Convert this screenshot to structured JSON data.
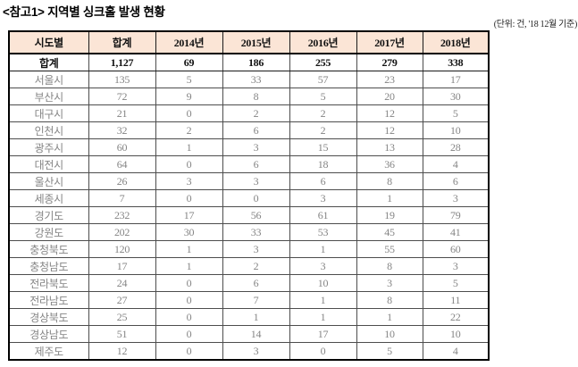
{
  "title": "<참고1> 지역별 싱크홀 발생 현황",
  "unit_note": "(단위: 건, '18 12월 기준)",
  "colors": {
    "header_bg": "#FBE5D6",
    "body_text": "#858585",
    "emphasis_text": "#111111",
    "border": "#4d4d4d"
  },
  "table": {
    "columns": [
      "시도별",
      "합계",
      "2014년",
      "2015년",
      "2016년",
      "2017년",
      "2018년"
    ],
    "total_row": {
      "label": "합계",
      "values": [
        "1,127",
        "69",
        "186",
        "255",
        "279",
        "338"
      ]
    },
    "rows": [
      {
        "label": "서울시",
        "values": [
          "135",
          "5",
          "33",
          "57",
          "23",
          "17"
        ]
      },
      {
        "label": "부산시",
        "values": [
          "72",
          "9",
          "8",
          "5",
          "20",
          "30"
        ]
      },
      {
        "label": "대구시",
        "values": [
          "21",
          "0",
          "2",
          "2",
          "12",
          "5"
        ]
      },
      {
        "label": "인천시",
        "values": [
          "32",
          "2",
          "6",
          "2",
          "12",
          "10"
        ]
      },
      {
        "label": "광주시",
        "values": [
          "60",
          "1",
          "3",
          "15",
          "13",
          "28"
        ]
      },
      {
        "label": "대전시",
        "values": [
          "64",
          "0",
          "6",
          "18",
          "36",
          "4"
        ]
      },
      {
        "label": "울산시",
        "values": [
          "26",
          "3",
          "3",
          "6",
          "8",
          "6"
        ]
      },
      {
        "label": "세종시",
        "values": [
          "7",
          "0",
          "0",
          "3",
          "1",
          "3"
        ]
      },
      {
        "label": "경기도",
        "values": [
          "232",
          "17",
          "56",
          "61",
          "19",
          "79"
        ]
      },
      {
        "label": "강원도",
        "values": [
          "202",
          "30",
          "33",
          "53",
          "45",
          "41"
        ]
      },
      {
        "label": "충청북도",
        "values": [
          "120",
          "1",
          "3",
          "1",
          "55",
          "60"
        ]
      },
      {
        "label": "충청남도",
        "values": [
          "17",
          "1",
          "2",
          "3",
          "8",
          "3"
        ]
      },
      {
        "label": "전라북도",
        "values": [
          "24",
          "0",
          "6",
          "10",
          "3",
          "5"
        ]
      },
      {
        "label": "전라남도",
        "values": [
          "27",
          "0",
          "7",
          "1",
          "8",
          "11"
        ]
      },
      {
        "label": "경상북도",
        "values": [
          "25",
          "0",
          "1",
          "1",
          "1",
          "22"
        ]
      },
      {
        "label": "경상남도",
        "values": [
          "51",
          "0",
          "14",
          "17",
          "10",
          "10"
        ]
      },
      {
        "label": "제주도",
        "values": [
          "12",
          "0",
          "3",
          "0",
          "5",
          "4"
        ]
      }
    ]
  }
}
